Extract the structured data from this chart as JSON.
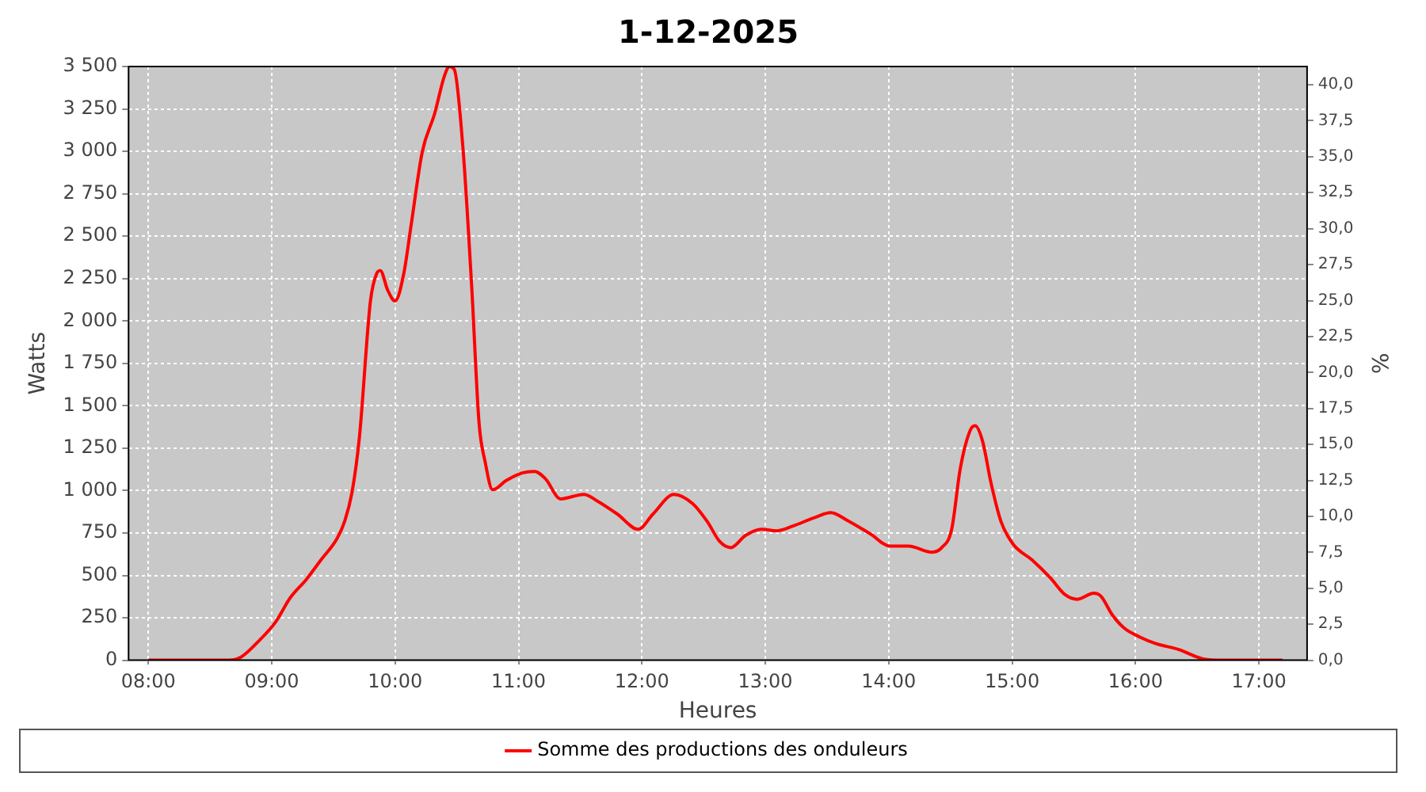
{
  "chart_data": {
    "type": "line",
    "title": "1-12-2025",
    "xlabel": "Heures",
    "ylabel": "Watts",
    "y2label": "%",
    "xlim": [
      7.84,
      17.39
    ],
    "xticks": [
      {
        "value": 8,
        "label": "08:00"
      },
      {
        "value": 9,
        "label": "09:00"
      },
      {
        "value": 10,
        "label": "10:00"
      },
      {
        "value": 11,
        "label": "11:00"
      },
      {
        "value": 12,
        "label": "12:00"
      },
      {
        "value": 13,
        "label": "13:00"
      },
      {
        "value": 14,
        "label": "14:00"
      },
      {
        "value": 15,
        "label": "15:00"
      },
      {
        "value": 16,
        "label": "16:00"
      },
      {
        "value": 17,
        "label": "17:00"
      }
    ],
    "ylim": [
      0,
      3500
    ],
    "yticks": [
      0,
      250,
      500,
      750,
      {
        "value": 1000,
        "label": "1 000"
      },
      {
        "value": 1250,
        "label": "1 250"
      },
      {
        "value": 1500,
        "label": "1 500"
      },
      {
        "value": 1750,
        "label": "1 750"
      },
      {
        "value": 2000,
        "label": "2 000"
      },
      {
        "value": 2250,
        "label": "2 250"
      },
      {
        "value": 2500,
        "label": "2 500"
      },
      {
        "value": 2750,
        "label": "2 750"
      },
      {
        "value": 3000,
        "label": "3 000"
      },
      {
        "value": 3250,
        "label": "3 250"
      },
      {
        "value": 3500,
        "label": "3 500"
      }
    ],
    "y2lim": [
      0,
      41.27
    ],
    "y2ticks": [
      {
        "value": 0,
        "label": "0,0"
      },
      {
        "value": 2.5,
        "label": "2,5"
      },
      {
        "value": 5,
        "label": "5,0"
      },
      {
        "value": 7.5,
        "label": "7,5"
      },
      {
        "value": 10,
        "label": "10,0"
      },
      {
        "value": 12.5,
        "label": "12,5"
      },
      {
        "value": 15,
        "label": "15,0"
      },
      {
        "value": 17.5,
        "label": "17,5"
      },
      {
        "value": 20,
        "label": "20,0"
      },
      {
        "value": 22.5,
        "label": "22,5"
      },
      {
        "value": 25,
        "label": "25,0"
      },
      {
        "value": 27.5,
        "label": "27,5"
      },
      {
        "value": 30,
        "label": "30,0"
      },
      {
        "value": 32.5,
        "label": "32,5"
      },
      {
        "value": 35,
        "label": "35,0"
      },
      {
        "value": 37.5,
        "label": "37,5"
      },
      {
        "value": 40,
        "label": "40,0"
      }
    ],
    "grid": true,
    "legend": "bottom",
    "marker": "none",
    "line_style": "solid",
    "series": [
      {
        "name": "Somme des productions des onduleurs",
        "color": "#ff0000",
        "x": [
          8.0,
          8.65,
          8.75,
          8.9,
          9.03,
          9.15,
          9.28,
          9.4,
          9.53,
          9.59,
          9.65,
          9.71,
          9.8,
          9.85,
          9.88,
          9.94,
          10.0,
          10.07,
          10.13,
          10.22,
          10.32,
          10.4,
          10.44,
          10.48,
          10.55,
          10.62,
          10.68,
          10.73,
          10.79,
          10.9,
          11.03,
          11.13,
          11.22,
          11.34,
          11.53,
          11.65,
          11.8,
          11.97,
          12.09,
          12.26,
          12.41,
          12.53,
          12.63,
          12.72,
          12.84,
          12.97,
          13.09,
          13.22,
          13.41,
          13.53,
          13.66,
          13.85,
          14.01,
          14.16,
          14.35,
          14.43,
          14.51,
          14.58,
          14.66,
          14.7,
          14.76,
          14.83,
          14.91,
          15.01,
          15.16,
          15.31,
          15.43,
          15.53,
          15.66,
          15.72,
          15.81,
          15.91,
          16.04,
          16.16,
          16.35,
          16.54,
          16.66,
          17.19
        ],
        "values": [
          0,
          0,
          18,
          117,
          224,
          368,
          476,
          592,
          718,
          817,
          987,
          1310,
          2118,
          2279,
          2297,
          2181,
          2118,
          2279,
          2567,
          2997,
          3222,
          3446,
          3500,
          3482,
          3015,
          2208,
          1400,
          1167,
          1005,
          1059,
          1104,
          1113,
          1068,
          951,
          978,
          933,
          862,
          772,
          862,
          978,
          924,
          817,
          700,
          664,
          736,
          772,
          763,
          790,
          844,
          870,
          826,
          745,
          673,
          673,
          637,
          664,
          772,
          1131,
          1355,
          1382,
          1292,
          1041,
          817,
          682,
          592,
          485,
          386,
          359,
          395,
          377,
          269,
          188,
          135,
          99,
          63,
          9,
          0,
          0
        ]
      }
    ]
  }
}
